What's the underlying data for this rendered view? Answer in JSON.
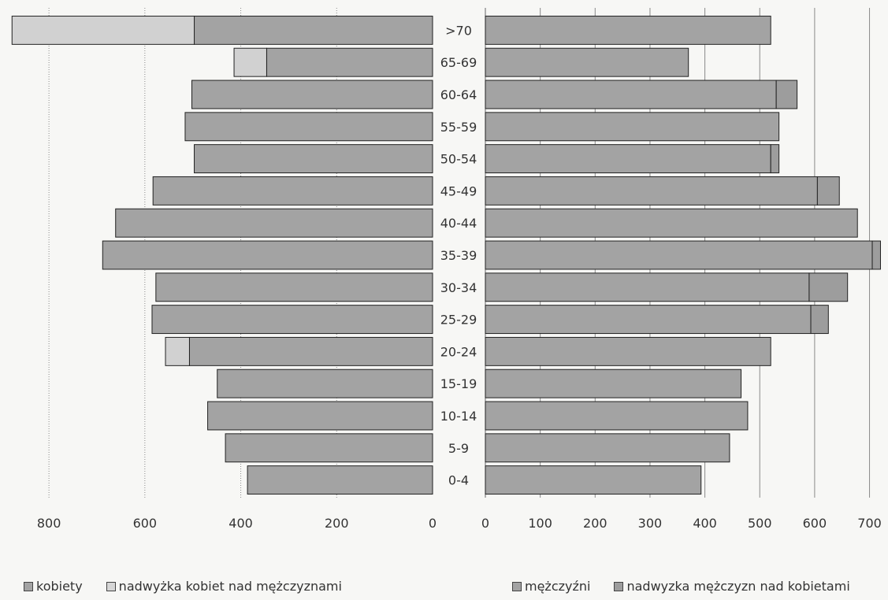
{
  "chart_data": [
    {
      "type": "bar",
      "orientation": "horizontal",
      "stacked": true,
      "direction": "reversed",
      "categories": [
        ">70",
        "65-69",
        "60-64",
        "55-59",
        "50-54",
        "45-49",
        "40-44",
        "35-39",
        "30-34",
        "25-29",
        "20-24",
        "15-19",
        "10-14",
        "5-9",
        "0-4"
      ],
      "xlim": [
        0,
        900
      ],
      "xticks": [
        0,
        200,
        400,
        600,
        800
      ],
      "xtick_labels": [
        "0",
        "200",
        "400",
        "600",
        "800"
      ],
      "grid": true,
      "legend_position": "bottom",
      "series": [
        {
          "name": "kobiety",
          "color": "#a3a3a3",
          "values": [
            497,
            346,
            502,
            516,
            497,
            583,
            661,
            688,
            577,
            585,
            507,
            449,
            469,
            432,
            386
          ]
        },
        {
          "name": "nadwyżka kobiet nad mężczyznami",
          "color": "#d1d1d1",
          "values": [
            380,
            68,
            0,
            0,
            0,
            0,
            0,
            0,
            0,
            0,
            50,
            0,
            0,
            0,
            0
          ]
        }
      ]
    },
    {
      "type": "bar",
      "orientation": "horizontal",
      "stacked": true,
      "categories": [
        ">70",
        "65-69",
        "60-64",
        "55-59",
        "50-54",
        "45-49",
        "40-44",
        "35-39",
        "30-34",
        "25-29",
        "20-24",
        "15-19",
        "10-14",
        "5-9",
        "0-4"
      ],
      "xlim": [
        0,
        730
      ],
      "xticks": [
        0,
        100,
        200,
        300,
        400,
        500,
        600,
        700
      ],
      "xtick_labels": [
        "0",
        "100",
        "200",
        "300",
        "400",
        "500",
        "600",
        "700"
      ],
      "grid": true,
      "legend_position": "bottom",
      "series": [
        {
          "name": "mężczyźni",
          "color": "#a3a3a3",
          "values": [
            520,
            370,
            530,
            535,
            520,
            605,
            678,
            705,
            590,
            593,
            520,
            466,
            478,
            445,
            393
          ]
        },
        {
          "name": "nadwyzka mężczyzn nad kobietami",
          "color": "#9d9d9d",
          "values": [
            0,
            0,
            38,
            0,
            15,
            40,
            0,
            15,
            70,
            32,
            0,
            0,
            0,
            0,
            0
          ]
        }
      ]
    }
  ],
  "legend": {
    "left": [
      {
        "label": "kobiety",
        "color": "#a3a3a3"
      },
      {
        "label": "nadwyżka kobiet nad mężczyznami",
        "color": "#d6d6d6"
      }
    ],
    "right": [
      {
        "label": "mężczyźni",
        "color": "#a3a3a3"
      },
      {
        "label": "nadwyzka mężczyzn nad kobietami",
        "color": "#9d9d9d"
      }
    ]
  }
}
